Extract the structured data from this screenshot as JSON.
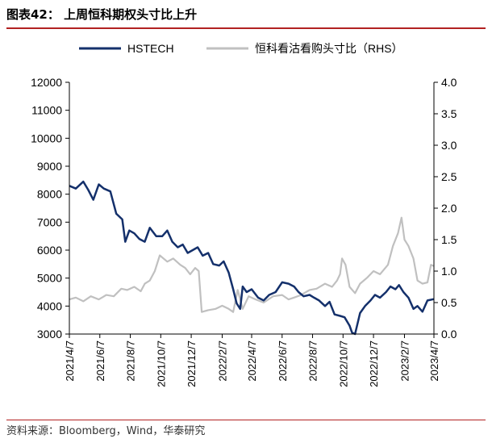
{
  "header": {
    "title": "图表42：  上周恒科期权头寸比上升"
  },
  "footer": {
    "source": "资料来源：Bloomberg，Wind，华泰研究"
  },
  "colors": {
    "hstech": "#14306b",
    "ratio": "#c0c0c0",
    "title_rule": "#b22222",
    "axis": "#000000"
  },
  "chart_data": {
    "type": "line",
    "title": "",
    "xlabel": "",
    "ylabel": "",
    "ylabel_right": "",
    "grid": false,
    "legend_placement": "top",
    "xlim": [
      "2021-04-07",
      "2023-04-07"
    ],
    "x_ticks": [
      "2021/4/7",
      "2021/6/7",
      "2021/8/7",
      "2021/10/7",
      "2021/12/7",
      "2022/2/7",
      "2022/4/7",
      "2022/6/7",
      "2022/8/7",
      "2022/10/7",
      "2022/12/7",
      "2023/2/7",
      "2023/4/7"
    ],
    "ylim_left": [
      3000,
      12000
    ],
    "y_ticks_left": [
      "3000",
      "4000",
      "5000",
      "6000",
      "7000",
      "8000",
      "9000",
      "10000",
      "11000",
      "12000"
    ],
    "ylim_right": [
      0.0,
      4.0
    ],
    "y_ticks_right": [
      "0.0",
      "0.5",
      "1.0",
      "1.5",
      "2.0",
      "2.5",
      "3.0",
      "3.5",
      "4.0"
    ],
    "series": [
      {
        "name": "HSTECH",
        "axis": "left",
        "x": [
          "2021-04-07",
          "2021-04-20",
          "2021-05-05",
          "2021-05-15",
          "2021-05-25",
          "2021-06-05",
          "2021-06-15",
          "2021-06-28",
          "2021-07-10",
          "2021-07-22",
          "2021-07-28",
          "2021-08-05",
          "2021-08-15",
          "2021-08-25",
          "2021-09-05",
          "2021-09-15",
          "2021-09-28",
          "2021-10-10",
          "2021-10-20",
          "2021-10-30",
          "2021-11-10",
          "2021-11-20",
          "2021-11-30",
          "2021-12-10",
          "2021-12-20",
          "2021-12-30",
          "2022-01-10",
          "2022-01-20",
          "2022-02-01",
          "2022-02-10",
          "2022-02-20",
          "2022-03-01",
          "2022-03-08",
          "2022-03-15",
          "2022-03-20",
          "2022-03-28",
          "2022-04-07",
          "2022-04-20",
          "2022-05-01",
          "2022-05-12",
          "2022-05-25",
          "2022-06-07",
          "2022-06-20",
          "2022-07-01",
          "2022-07-10",
          "2022-07-20",
          "2022-08-01",
          "2022-08-10",
          "2022-08-20",
          "2022-09-01",
          "2022-09-10",
          "2022-09-20",
          "2022-10-01",
          "2022-10-10",
          "2022-10-20",
          "2022-10-25",
          "2022-10-31",
          "2022-11-10",
          "2022-11-20",
          "2022-12-01",
          "2022-12-10",
          "2022-12-20",
          "2023-01-01",
          "2023-01-10",
          "2023-01-20",
          "2023-01-27",
          "2023-02-05",
          "2023-02-15",
          "2023-02-25",
          "2023-03-05",
          "2023-03-15",
          "2023-03-25",
          "2023-04-07"
        ],
        "values": [
          8300,
          8200,
          8450,
          8150,
          7800,
          8350,
          8200,
          8100,
          7300,
          7100,
          6300,
          6700,
          6600,
          6400,
          6300,
          6800,
          6500,
          6500,
          6700,
          6300,
          6100,
          6200,
          5900,
          6000,
          6100,
          5800,
          5900,
          5500,
          5450,
          5600,
          5200,
          4600,
          4100,
          3900,
          4700,
          4500,
          4600,
          4300,
          4200,
          4400,
          4500,
          4850,
          4800,
          4700,
          4500,
          4350,
          4400,
          4300,
          4200,
          4000,
          4150,
          3700,
          3650,
          3600,
          3300,
          3050,
          3000,
          3750,
          4000,
          4200,
          4400,
          4300,
          4500,
          4700,
          4600,
          4750,
          4500,
          4300,
          3900,
          4000,
          3800,
          4200,
          4250
        ]
      },
      {
        "name": "恒科看沽看购头寸比（RHS）",
        "axis": "right",
        "x": [
          "2021-04-07",
          "2021-04-20",
          "2021-05-05",
          "2021-05-20",
          "2021-06-05",
          "2021-06-20",
          "2021-07-05",
          "2021-07-20",
          "2021-08-01",
          "2021-08-15",
          "2021-08-28",
          "2021-09-05",
          "2021-09-15",
          "2021-09-25",
          "2021-10-05",
          "2021-10-20",
          "2021-11-01",
          "2021-11-15",
          "2021-11-25",
          "2021-12-05",
          "2021-12-15",
          "2021-12-22",
          "2021-12-28",
          "2022-01-10",
          "2022-01-25",
          "2022-02-07",
          "2022-02-20",
          "2022-03-01",
          "2022-03-10",
          "2022-03-20",
          "2022-04-01",
          "2022-04-15",
          "2022-05-01",
          "2022-05-20",
          "2022-06-07",
          "2022-06-20",
          "2022-07-01",
          "2022-07-15",
          "2022-08-01",
          "2022-08-15",
          "2022-09-01",
          "2022-09-15",
          "2022-09-25",
          "2022-10-01",
          "2022-10-05",
          "2022-10-12",
          "2022-10-20",
          "2022-10-31",
          "2022-11-10",
          "2022-11-25",
          "2022-12-07",
          "2022-12-20",
          "2023-01-05",
          "2023-01-15",
          "2023-01-25",
          "2023-02-01",
          "2023-02-07",
          "2023-02-15",
          "2023-02-25",
          "2023-03-05",
          "2023-03-15",
          "2023-03-25",
          "2023-04-01",
          "2023-04-07"
        ],
        "values": [
          0.55,
          0.58,
          0.52,
          0.6,
          0.55,
          0.62,
          0.6,
          0.72,
          0.7,
          0.75,
          0.68,
          0.8,
          0.85,
          1.0,
          1.25,
          1.15,
          1.2,
          1.1,
          1.05,
          0.95,
          1.05,
          1.0,
          0.35,
          0.38,
          0.4,
          0.45,
          0.4,
          0.35,
          0.7,
          0.4,
          0.6,
          0.55,
          0.5,
          0.6,
          0.62,
          0.55,
          0.58,
          0.62,
          0.7,
          0.72,
          0.8,
          0.75,
          0.85,
          0.95,
          1.2,
          1.1,
          0.75,
          0.65,
          0.8,
          0.9,
          1.0,
          0.95,
          1.1,
          1.4,
          1.6,
          1.85,
          1.5,
          1.4,
          1.2,
          0.85,
          0.8,
          0.82,
          1.1,
          1.08
        ]
      }
    ]
  }
}
